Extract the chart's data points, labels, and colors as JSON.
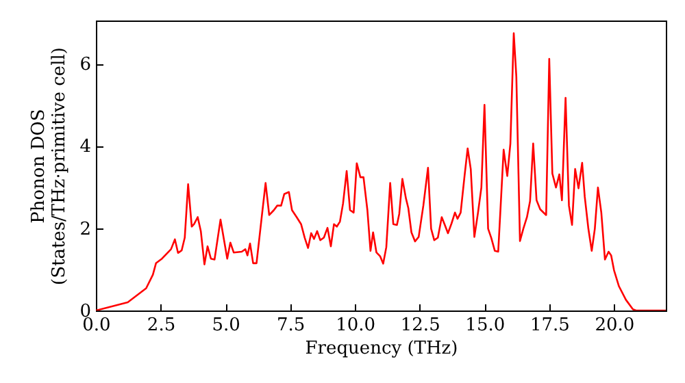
{
  "chart_data": {
    "type": "line",
    "xlabel": "Frequency (THz)",
    "ylabel": "Phonon DOS\n(States/THz·primitive cell)",
    "xlim": [
      0,
      22
    ],
    "ylim": [
      0,
      7.05
    ],
    "xticks": [
      {
        "value": 0,
        "label": "0.0"
      },
      {
        "value": 2.5,
        "label": "2.5"
      },
      {
        "value": 5,
        "label": "5.0"
      },
      {
        "value": 7.5,
        "label": "7.5"
      },
      {
        "value": 10,
        "label": "10.0"
      },
      {
        "value": 12.5,
        "label": "12.5"
      },
      {
        "value": 15,
        "label": "15.0"
      },
      {
        "value": 17.5,
        "label": "17.5"
      },
      {
        "value": 20,
        "label": "20.0"
      }
    ],
    "yticks": [
      0,
      2,
      4,
      6
    ],
    "grid": false,
    "marker": "none",
    "line_style": "solid",
    "series": [
      {
        "color": "#ff0000",
        "x": [
          0,
          1.23,
          1.94,
          2.2,
          2.32,
          2.55,
          2.9,
          3.05,
          3.17,
          3.31,
          3.43,
          3.56,
          3.7,
          3.79,
          3.93,
          4.05,
          4.19,
          4.31,
          4.44,
          4.58,
          4.81,
          5.07,
          5.19,
          5.32,
          5.63,
          5.77,
          5.85,
          5.95,
          6.07,
          6.2,
          6.39,
          6.55,
          6.69,
          6.87,
          7.0,
          7.15,
          7.27,
          7.45,
          7.57,
          7.75,
          7.92,
          8.06,
          8.19,
          8.31,
          8.42,
          8.54,
          8.66,
          8.8,
          8.94,
          9.07,
          9.19,
          9.3,
          9.42,
          9.54,
          9.68,
          9.81,
          9.95,
          10.07,
          10.21,
          10.33,
          10.48,
          10.6,
          10.7,
          10.83,
          10.97,
          11.09,
          11.21,
          11.36,
          11.48,
          11.62,
          11.71,
          11.83,
          11.97,
          12.06,
          12.18,
          12.32,
          12.46,
          12.64,
          12.82,
          12.94,
          13.06,
          13.2,
          13.35,
          13.47,
          13.59,
          13.73,
          13.86,
          13.96,
          14.08,
          14.23,
          14.35,
          14.47,
          14.61,
          14.75,
          14.88,
          15.0,
          15.14,
          15.26,
          15.4,
          15.53,
          15.74,
          15.88,
          16.0,
          16.13,
          16.23,
          16.37,
          16.5,
          16.64,
          16.76,
          16.88,
          17.01,
          17.15,
          17.38,
          17.5,
          17.62,
          17.76,
          17.89,
          17.99,
          18.13,
          18.26,
          18.38,
          18.5,
          18.63,
          18.77,
          18.87,
          19.01,
          19.14,
          19.26,
          19.38,
          19.51,
          19.65,
          19.79,
          19.89,
          20.0,
          20.19,
          20.46,
          20.73,
          20.85,
          22.0
        ],
        "values": [
          0,
          0.2,
          0.54,
          0.87,
          1.15,
          1.26,
          1.49,
          1.73,
          1.4,
          1.46,
          1.77,
          3.07,
          2.04,
          2.1,
          2.27,
          1.93,
          1.12,
          1.56,
          1.26,
          1.24,
          2.21,
          1.26,
          1.65,
          1.41,
          1.43,
          1.49,
          1.34,
          1.63,
          1.15,
          1.15,
          2.21,
          3.1,
          2.32,
          2.44,
          2.55,
          2.55,
          2.83,
          2.88,
          2.44,
          2.27,
          2.1,
          1.77,
          1.52,
          1.88,
          1.74,
          1.93,
          1.71,
          1.77,
          2.01,
          1.56,
          2.1,
          2.04,
          2.16,
          2.6,
          3.39,
          2.44,
          2.38,
          3.58,
          3.24,
          3.24,
          2.44,
          1.45,
          1.9,
          1.41,
          1.32,
          1.14,
          1.54,
          3.1,
          2.1,
          2.08,
          2.35,
          3.2,
          2.72,
          2.49,
          1.9,
          1.68,
          1.79,
          2.55,
          3.47,
          1.99,
          1.71,
          1.77,
          2.27,
          2.08,
          1.88,
          2.12,
          2.38,
          2.23,
          2.38,
          3.27,
          3.94,
          3.44,
          1.79,
          2.38,
          2.99,
          5.0,
          1.99,
          1.77,
          1.45,
          1.43,
          3.91,
          3.27,
          4.06,
          6.74,
          5.68,
          1.69,
          1.99,
          2.27,
          2.66,
          4.06,
          2.68,
          2.46,
          2.32,
          6.12,
          3.33,
          2.99,
          3.31,
          2.68,
          5.17,
          2.55,
          2.08,
          3.44,
          2.97,
          3.59,
          2.77,
          1.99,
          1.45,
          1.99,
          2.99,
          2.38,
          1.24,
          1.43,
          1.34,
          0.98,
          0.59,
          0.26,
          0.03,
          0,
          0
        ]
      }
    ]
  }
}
